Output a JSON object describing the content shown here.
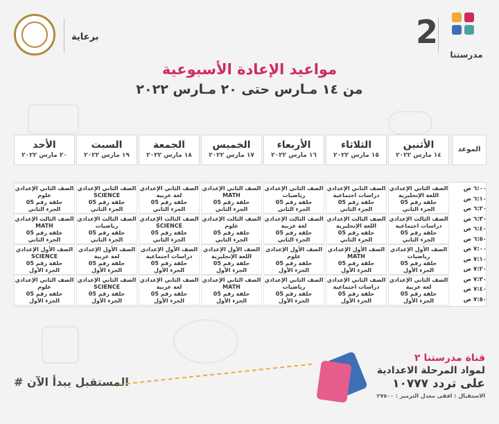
{
  "header": {
    "channel_name": "مدرستنا",
    "channel_number": "2",
    "sponsor_label": "برعاية",
    "title": "مواعيد الإعادة الأسبوعية",
    "subtitle": "من ١٤ مـارس حتى ٢٠ مـارس ٢٠٢٢",
    "logo_colors": [
      "#f0a93a",
      "#cf2c5e",
      "#3e6fb6",
      "#4aa3a0"
    ]
  },
  "table": {
    "time_header": "الموعد",
    "days": [
      {
        "name": "الأثنين",
        "date": "١٤ مارس ٢٠٢٢"
      },
      {
        "name": "الثلاثاء",
        "date": "١٥ مارس ٢٠٢٢"
      },
      {
        "name": "الأربعاء",
        "date": "١٦ مارس ٢٠٢٢"
      },
      {
        "name": "الخميس",
        "date": "١٧ مارس ٢٠٢٢"
      },
      {
        "name": "الجمعة",
        "date": "١٨ مارس ٢٠٢٢"
      },
      {
        "name": "السبت",
        "date": "١٩ مارس ٢٠٢٢"
      },
      {
        "name": "الأحد",
        "date": "٢٠ مارس ٢٠٢٢"
      }
    ],
    "times": [
      "٦:٠٠ ص",
      "٦:١٠ ص",
      "٦:٢٠ ص",
      "٦:٣٠ ص",
      "٦:٤٠ ص",
      "٦:٥٠ ص",
      "٧:٠٠ ص",
      "٧:١٠ ص",
      "٧:٢٠ ص",
      "٧:٣٠ ص",
      "٧:٤٠ ص",
      "٧:٥٠ ص"
    ],
    "rows": [
      [
        [
          "الصف الثاني الإعدادي",
          "اللغة الإنجليزية",
          "حلقة رقم 05",
          "الجزء الثاني"
        ],
        [
          "الصف الثاني الإعدادي",
          "دراسات اجتماعية",
          "حلقة رقم 05",
          "الجزء الثاني"
        ],
        [
          "الصف الثاني الإعدادي",
          "رياضيات",
          "حلقة رقم 05",
          "الجزء الثاني"
        ],
        [
          "الصف الثاني الإعدادي",
          "MATH",
          "حلقة رقم 05",
          "الجزء الثاني"
        ],
        [
          "الصف الثاني الإعدادي",
          "لغة عربية",
          "حلقة رقم 05",
          "الجزء الثاني"
        ],
        [
          "الصف الثاني الإعدادي",
          "SCIENCE",
          "حلقة رقم 05",
          "الجزء الثاني"
        ],
        [
          "الصف الثاني الإعدادي",
          "علوم",
          "حلقة رقم 05",
          "الجزء الثاني"
        ]
      ],
      [
        [
          "الصف الثالث الإعدادي",
          "دراسات اجتماعية",
          "حلقة رقم 05",
          "الجزء الثاني"
        ],
        [
          "الصف الثالث الإعدادي",
          "اللغة الإنجليزية",
          "حلقة رقم 05",
          "الجزء الثاني"
        ],
        [
          "الصف الثالث الإعدادي",
          "لغة عربية",
          "حلقة رقم 05",
          "الجزء الثاني"
        ],
        [
          "الصف الثالث الإعدادي",
          "علوم",
          "حلقة رقم 05",
          "الجزء الثاني"
        ],
        [
          "الصف الثالث الإعدادي",
          "SCIENCE",
          "حلقة رقم 05",
          "الجزء الثاني"
        ],
        [
          "الصف الثالث الإعدادي",
          "رياضيات",
          "حلقة رقم 05",
          "الجزء الثاني"
        ],
        [
          "الصف الثالث الإعدادي",
          "MATH",
          "حلقة رقم 05",
          "الجزء الثاني"
        ]
      ],
      [
        [
          "الصف الأول الإعدادي",
          "رياضيات",
          "حلقة رقم 05",
          "الجزء الأول"
        ],
        [
          "الصف الأول الإعدادي",
          "MATH",
          "حلقة رقم 05",
          "الجزء الأول"
        ],
        [
          "الصف الأول الإعدادي",
          "علوم",
          "حلقة رقم 05",
          "الجزء الأول"
        ],
        [
          "الصف الأول الإعدادي",
          "اللغة الإنجليزية",
          "حلقة رقم 05",
          "الجزء الأول"
        ],
        [
          "الصف الأول الإعدادي",
          "دراسات اجتماعية",
          "حلقة رقم 05",
          "الجزء الأول"
        ],
        [
          "الصف الأول الإعدادي",
          "لغة عربية",
          "حلقة رقم 05",
          "الجزء الأول"
        ],
        [
          "الصف الأول الإعدادي",
          "SCIENCE",
          "حلقة رقم 05",
          "الجزء الأول"
        ]
      ],
      [
        [
          "الصف الثاني الإعدادي",
          "لغة عربية",
          "حلقة رقم 05",
          "الجزء الأول"
        ],
        [
          "الصف الثاني الإعدادي",
          "دراسات اجتماعية",
          "حلقة رقم 05",
          "الجزء الأول"
        ],
        [
          "الصف الثاني الإعدادي",
          "رياضيات",
          "حلقة رقم 05",
          "الجزء الأول"
        ],
        [
          "الصف الثاني الإعدادي",
          "MATH",
          "حلقة رقم 05",
          "الجزء الأول"
        ],
        [
          "الصف الثاني الإعدادي",
          "لغة عربية",
          "حلقة رقم 05",
          "الجزء الأول"
        ],
        [
          "الصف الثاني الإعدادي",
          "SCIENCE",
          "حلقة رقم 05",
          "الجزء الأول"
        ],
        [
          "الصف الثاني الإعدادي",
          "علوم",
          "حلقة رقم 05",
          "الجزء الأول"
        ]
      ]
    ]
  },
  "footer": {
    "slogan": "# المستقبل يبدأ الآن",
    "channel_line": "قناة مدرستنا ٢",
    "stage_line": "لمواد المرحلة الاعدادية",
    "frequency_line": "على تردد ١٠٧٧٧",
    "reception_line": "الاستقبال : افقى معدل الترميز : ٢٧٥٠٠"
  }
}
